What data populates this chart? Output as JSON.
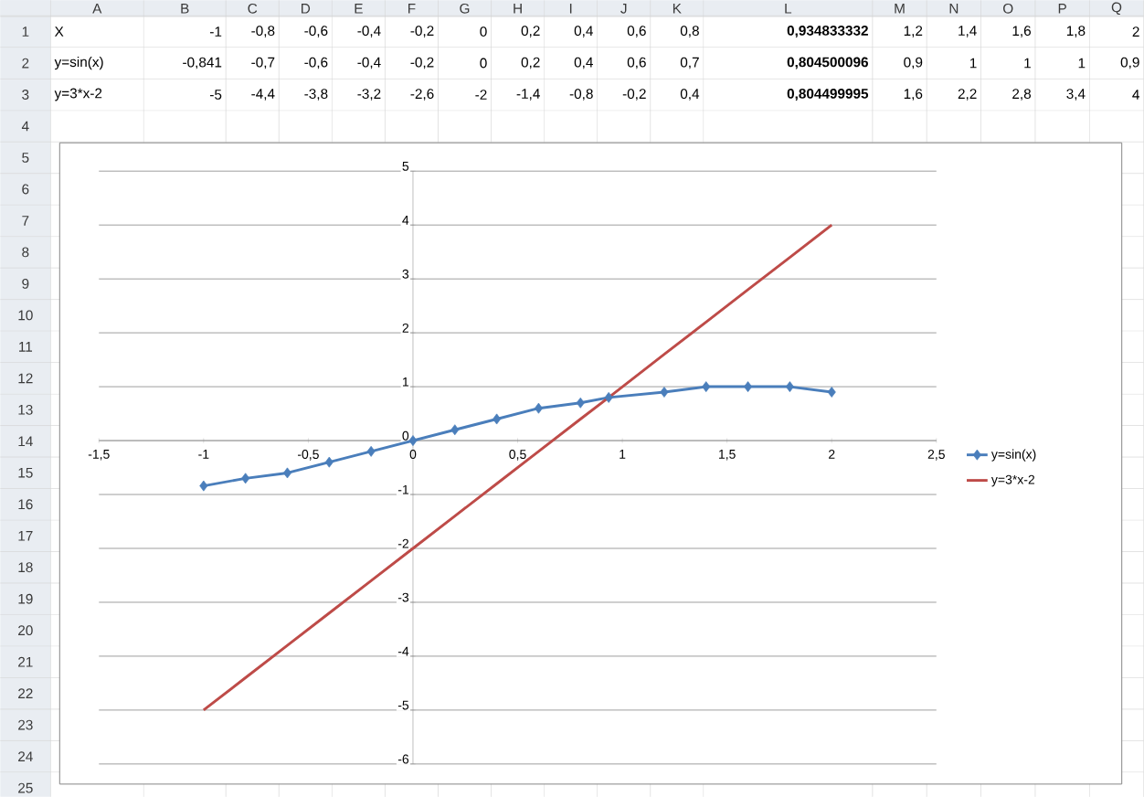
{
  "chart_data": {
    "type": "line",
    "x": [
      -1,
      -0.8,
      -0.6,
      -0.4,
      -0.2,
      0,
      0.2,
      0.4,
      0.6,
      0.8,
      0.934833332,
      1.2,
      1.4,
      1.6,
      1.8,
      2
    ],
    "series": [
      {
        "name": "y=sin(x)",
        "color": "#4a7ebb",
        "marker": "diamond",
        "values": [
          -0.84,
          -0.7,
          -0.6,
          -0.4,
          -0.2,
          0,
          0.2,
          0.4,
          0.6,
          0.7,
          0.8,
          0.9,
          1,
          1,
          1,
          0.9
        ]
      },
      {
        "name": "y=3*x-2",
        "color": "#be4b48",
        "marker": "none",
        "values": [
          -5,
          -4.4,
          -3.8,
          -3.2,
          -2.6,
          -2,
          -1.4,
          -0.8,
          -0.2,
          0.4,
          0.8,
          1.6,
          2.2,
          2.8,
          3.4,
          4
        ]
      }
    ],
    "xlim": [
      -1.5,
      2.5
    ],
    "xticks": [
      {
        "value": -1.5,
        "label": "-1,5"
      },
      -1,
      {
        "value": -0.5,
        "label": "-0,5"
      },
      0,
      {
        "value": 0.5,
        "label": "0,5"
      },
      1,
      {
        "value": 1.5,
        "label": "1,5"
      },
      2,
      {
        "value": 2.5,
        "label": "2,5"
      }
    ],
    "ylim": [
      -6,
      5
    ],
    "yticks": [
      -6,
      -5,
      -4,
      -3,
      -2,
      -1,
      0,
      1,
      2,
      3,
      4,
      5
    ],
    "grid": "y",
    "legend": "right",
    "annotations": [
      "X",
      "-1",
      "-0,8",
      "-0,6",
      "-0,4",
      "-0,2",
      "0",
      "0,2",
      "0,4",
      "0,6",
      "0,8",
      "0,934833332",
      "1,2",
      "1,4",
      "1,6",
      "1,8",
      "2",
      "-0,841",
      "-0,7",
      "-0,6",
      "-0,4",
      "-0,2",
      "0",
      "0,2",
      "0,4",
      "0,6",
      "0,7",
      "0,804500096",
      "0,9",
      "1",
      "1",
      "1",
      "0,9",
      "-5",
      "-4,4",
      "-3,8",
      "-3,2",
      "-2,6",
      "-2",
      "-1,4",
      "-0,8",
      "-0,2",
      "0,4",
      "0,804499995",
      "1,6",
      "2,2",
      "2,8",
      "3,4",
      "4",
      "A",
      "B",
      "C",
      "D",
      "E",
      "F",
      "G",
      "H",
      "I",
      "J",
      "K",
      "L",
      "M",
      "N",
      "O",
      "P",
      "Q",
      "1",
      "2",
      "3",
      "4",
      "5",
      "6",
      "7",
      "8",
      "9",
      "10",
      "11",
      "12",
      "13",
      "14",
      "15",
      "16",
      "17",
      "18",
      "19",
      "20",
      "21",
      "22",
      "23",
      "24",
      "25"
    ]
  }
}
